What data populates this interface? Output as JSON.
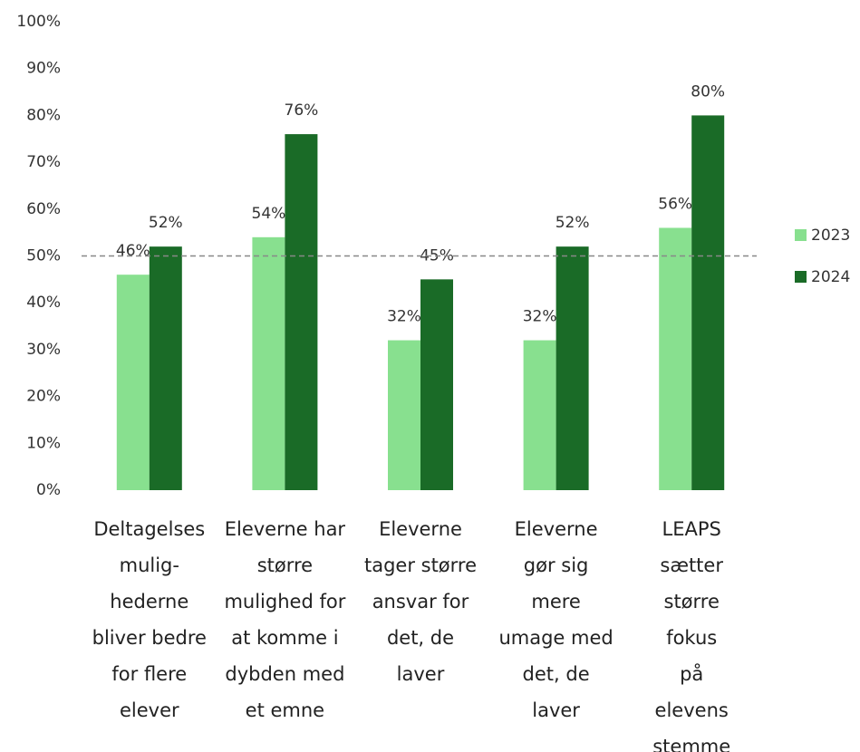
{
  "chart_data": {
    "type": "bar",
    "categories": [
      "Deltagelses\nmulig-\nhederne\nbliver bedre\nfor flere\nelever",
      "Eleverne har\nstørre\nmulighed for\nat komme i\ndybden med\net emne",
      "Eleverne\ntager større\nansvar for\ndet, de\nlaver",
      "Eleverne\ngør sig\nmere\numage med\ndet, de\nlaver",
      "LEAPS\nsætter\nstørre\nfokus\npå\nelevens\nstemme"
    ],
    "series": [
      {
        "name": "2023",
        "color": "#88e08f",
        "values": [
          46,
          54,
          32,
          32,
          56
        ],
        "value_labels": [
          "46%",
          "54%",
          "32%",
          "32%",
          "56%"
        ]
      },
      {
        "name": "2024",
        "color": "#1a6b27",
        "values": [
          52,
          76,
          45,
          52,
          80
        ],
        "value_labels": [
          "52%",
          "76%",
          "45%",
          "52%",
          "80%"
        ]
      }
    ],
    "ylim": [
      0,
      100
    ],
    "yticks": [
      {
        "value": 0,
        "label": "0%"
      },
      {
        "value": 10,
        "label": "10%"
      },
      {
        "value": 20,
        "label": "20%"
      },
      {
        "value": 30,
        "label": "30%"
      },
      {
        "value": 40,
        "label": "40%"
      },
      {
        "value": 50,
        "label": "50%"
      },
      {
        "value": 60,
        "label": "60%"
      },
      {
        "value": 70,
        "label": "70%"
      },
      {
        "value": 80,
        "label": "80%"
      },
      {
        "value": 90,
        "label": "90%"
      },
      {
        "value": 100,
        "label": "100%"
      }
    ],
    "reference_line": 50,
    "legend": "right"
  }
}
